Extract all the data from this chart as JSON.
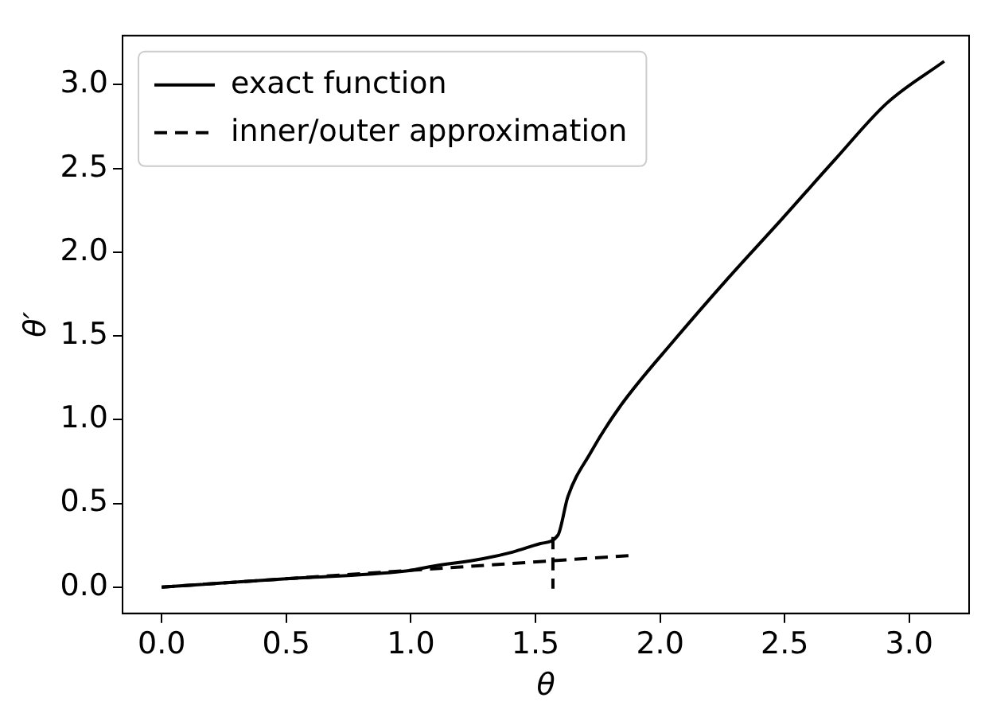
{
  "chart_data": {
    "type": "line",
    "xlabel": "θ",
    "ylabel": "θ′",
    "xlim": [
      -0.157,
      3.24
    ],
    "ylim": [
      -0.157,
      3.293
    ],
    "xticks": [
      {
        "value": 0,
        "label": "0.0"
      },
      {
        "value": 0.5,
        "label": "0.5"
      },
      {
        "value": 1,
        "label": "1.0"
      },
      {
        "value": 1.5,
        "label": "1.5"
      },
      {
        "value": 2,
        "label": "2.0"
      },
      {
        "value": 2.5,
        "label": "2.5"
      },
      {
        "value": 3,
        "label": "3.0"
      }
    ],
    "yticks": [
      {
        "value": 0,
        "label": "0.0"
      },
      {
        "value": 0.5,
        "label": "0.5"
      },
      {
        "value": 1,
        "label": "1.0"
      },
      {
        "value": 1.5,
        "label": "1.5"
      },
      {
        "value": 2,
        "label": "2.0"
      },
      {
        "value": 2.5,
        "label": "2.5"
      },
      {
        "value": 3,
        "label": "3.0"
      }
    ],
    "grid": false,
    "legend": "top left",
    "marker": "none",
    "series": [
      {
        "name": "exact function",
        "color": "#000000",
        "line_style": "solid",
        "x": [
          0,
          0.5,
          1.0,
          1.07,
          1.29,
          1.41,
          1.52,
          1.59,
          1.63,
          1.72,
          1.84,
          2.06,
          2.27,
          2.49,
          2.7,
          2.91,
          3.14
        ],
        "values": [
          0,
          0.05,
          0.1,
          0.12,
          0.17,
          0.21,
          0.26,
          0.31,
          0.54,
          0.8,
          1.08,
          1.48,
          1.84,
          2.2,
          2.55,
          2.89,
          3.14
        ]
      },
      {
        "name": "inner/outer approximation",
        "color": "#000000",
        "line_style": "dashed",
        "x": [
          0,
          1.89,
          null,
          1.57,
          1.57
        ],
        "values": [
          0,
          0.19,
          null,
          0.3,
          -0.01
        ]
      }
    ]
  }
}
